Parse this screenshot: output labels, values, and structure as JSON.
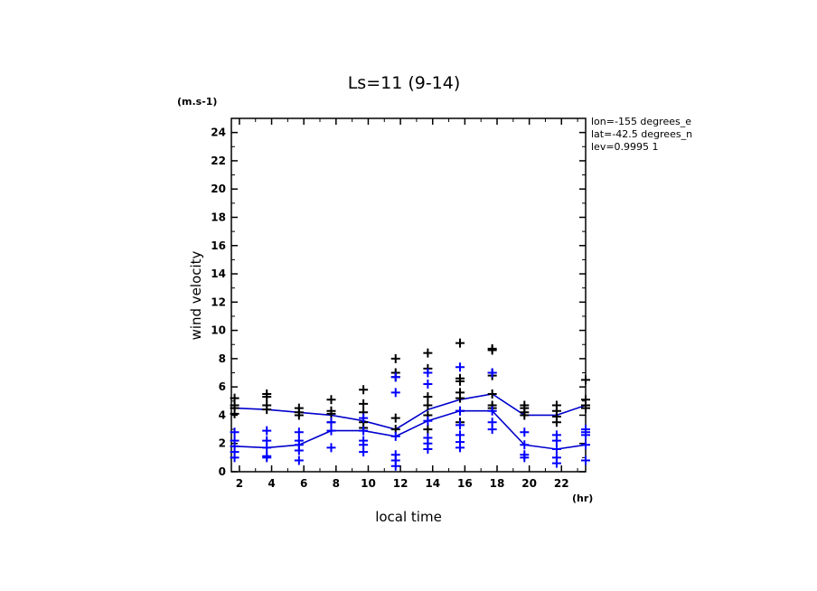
{
  "chart_data": {
    "type": "scatter",
    "title": "Ls=11 (9-14)",
    "xlabel": "local time",
    "ylabel": "wind velocity",
    "x_unit": "(hr)",
    "y_unit": "(m.s-1)",
    "xlim": [
      1.5,
      23.5
    ],
    "ylim": [
      0,
      25
    ],
    "x_ticks": [
      2,
      4,
      6,
      8,
      10,
      12,
      14,
      16,
      18,
      20,
      22
    ],
    "y_ticks": [
      0,
      2,
      4,
      6,
      8,
      10,
      12,
      14,
      16,
      18,
      20,
      22,
      24
    ],
    "grid": false,
    "annotations": [
      "lon=-155 degrees_e",
      "lat=-42.5 degrees_n",
      "lev=0.9995 1"
    ],
    "colors": {
      "series_a": "#000000",
      "series_b": "#0000ff",
      "lines": "#0000cc"
    },
    "series": [
      {
        "color": "#000000",
        "line": [
          [
            1.7,
            4.5
          ],
          [
            3.7,
            4.4
          ],
          [
            5.7,
            4.2
          ],
          [
            7.7,
            4.0
          ],
          [
            9.7,
            3.6
          ],
          [
            11.7,
            3.0
          ],
          [
            13.7,
            4.4
          ],
          [
            15.7,
            5.1
          ],
          [
            17.7,
            5.5
          ],
          [
            19.7,
            4.0
          ],
          [
            21.7,
            4.0
          ],
          [
            23.5,
            4.7
          ]
        ],
        "points": [
          [
            1.7,
            4.5
          ],
          [
            1.7,
            4.1
          ],
          [
            1.7,
            4.7
          ],
          [
            1.7,
            5.2
          ],
          [
            3.7,
            4.4
          ],
          [
            3.7,
            4.7
          ],
          [
            3.7,
            5.3
          ],
          [
            3.7,
            5.5
          ],
          [
            5.7,
            4.5
          ],
          [
            5.7,
            4.2
          ],
          [
            5.7,
            4.0
          ],
          [
            7.7,
            4.1
          ],
          [
            7.7,
            4.3
          ],
          [
            7.7,
            3.5
          ],
          [
            7.7,
            5.1
          ],
          [
            9.7,
            3.1
          ],
          [
            9.7,
            3.5
          ],
          [
            9.7,
            4.2
          ],
          [
            9.7,
            4.8
          ],
          [
            9.7,
            5.8
          ],
          [
            11.7,
            3.0
          ],
          [
            11.7,
            3.8
          ],
          [
            11.7,
            6.7
          ],
          [
            11.7,
            7.0
          ],
          [
            11.7,
            8.0
          ],
          [
            13.7,
            3.0
          ],
          [
            13.7,
            4.0
          ],
          [
            13.7,
            4.7
          ],
          [
            13.7,
            5.3
          ],
          [
            13.7,
            7.3
          ],
          [
            13.7,
            8.4
          ],
          [
            15.7,
            3.5
          ],
          [
            15.7,
            4.3
          ],
          [
            15.7,
            5.2
          ],
          [
            15.7,
            5.6
          ],
          [
            15.7,
            6.4
          ],
          [
            15.7,
            6.6
          ],
          [
            15.7,
            9.1
          ],
          [
            17.7,
            4.5
          ],
          [
            17.7,
            4.7
          ],
          [
            17.7,
            5.5
          ],
          [
            17.7,
            6.8
          ],
          [
            17.7,
            7.0
          ],
          [
            17.7,
            8.6
          ],
          [
            17.7,
            8.7
          ],
          [
            19.7,
            4.7
          ],
          [
            19.7,
            4.5
          ],
          [
            19.7,
            4.2
          ],
          [
            19.7,
            4.0
          ],
          [
            21.7,
            4.3
          ],
          [
            21.7,
            4.7
          ],
          [
            21.7,
            3.9
          ],
          [
            21.7,
            3.5
          ],
          [
            23.5,
            4.7
          ],
          [
            23.5,
            4.5
          ],
          [
            23.5,
            5.1
          ],
          [
            23.5,
            6.5
          ]
        ]
      },
      {
        "color": "#0000ff",
        "line": [
          [
            1.7,
            1.8
          ],
          [
            3.7,
            1.7
          ],
          [
            5.7,
            1.9
          ],
          [
            7.7,
            2.9
          ],
          [
            9.7,
            2.9
          ],
          [
            11.7,
            2.5
          ],
          [
            13.7,
            3.6
          ],
          [
            15.7,
            4.3
          ],
          [
            17.7,
            4.3
          ],
          [
            19.7,
            1.9
          ],
          [
            21.7,
            1.6
          ],
          [
            23.5,
            1.9
          ]
        ],
        "points": [
          [
            1.7,
            2.2
          ],
          [
            1.7,
            1.8
          ],
          [
            1.7,
            1.4
          ],
          [
            1.7,
            1.0
          ],
          [
            1.7,
            2.8
          ],
          [
            3.7,
            2.2
          ],
          [
            3.7,
            1.7
          ],
          [
            3.7,
            1.1
          ],
          [
            3.7,
            1.0
          ],
          [
            3.7,
            2.9
          ],
          [
            5.7,
            2.2
          ],
          [
            5.7,
            1.9
          ],
          [
            5.7,
            1.5
          ],
          [
            5.7,
            0.8
          ],
          [
            5.7,
            2.8
          ],
          [
            7.7,
            2.9
          ],
          [
            7.7,
            1.7
          ],
          [
            7.7,
            3.5
          ],
          [
            9.7,
            2.9
          ],
          [
            9.7,
            2.2
          ],
          [
            9.7,
            1.9
          ],
          [
            9.7,
            1.4
          ],
          [
            9.7,
            3.8
          ],
          [
            11.7,
            2.5
          ],
          [
            11.7,
            1.2
          ],
          [
            11.7,
            0.8
          ],
          [
            11.7,
            0.4
          ],
          [
            11.7,
            5.6
          ],
          [
            11.7,
            6.7
          ],
          [
            13.7,
            3.6
          ],
          [
            13.7,
            2.4
          ],
          [
            13.7,
            2.0
          ],
          [
            13.7,
            1.6
          ],
          [
            13.7,
            6.2
          ],
          [
            13.7,
            7.0
          ],
          [
            15.7,
            4.3
          ],
          [
            15.7,
            3.3
          ],
          [
            15.7,
            2.6
          ],
          [
            15.7,
            2.1
          ],
          [
            15.7,
            1.7
          ],
          [
            15.7,
            7.4
          ],
          [
            17.7,
            4.3
          ],
          [
            17.7,
            3.5
          ],
          [
            17.7,
            3.0
          ],
          [
            17.7,
            7.0
          ],
          [
            19.7,
            1.9
          ],
          [
            19.7,
            1.2
          ],
          [
            19.7,
            1.0
          ],
          [
            19.7,
            2.8
          ],
          [
            21.7,
            1.6
          ],
          [
            21.7,
            1.0
          ],
          [
            21.7,
            0.6
          ],
          [
            21.7,
            2.2
          ],
          [
            21.7,
            2.6
          ],
          [
            23.5,
            1.9
          ],
          [
            23.5,
            0.8
          ],
          [
            23.5,
            2.6
          ],
          [
            23.5,
            2.8
          ],
          [
            23.5,
            3.0
          ]
        ]
      }
    ]
  }
}
